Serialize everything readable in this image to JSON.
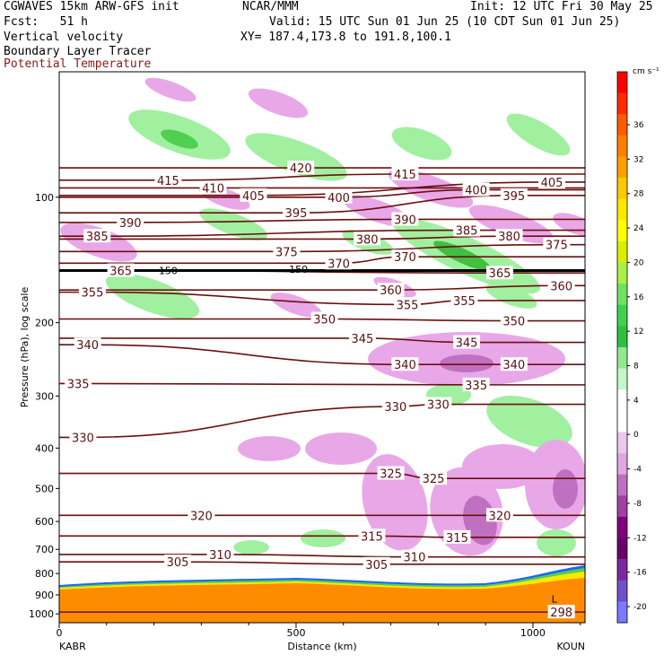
{
  "header": {
    "model": "CGWAVES 15km ARW-GFS init",
    "org": "NCAR/MMM",
    "init": "Init: 12 UTC Fri 30 May 25",
    "fcst": "Fcst:   51 h",
    "valid": "Valid: 15 UTC Sun 01 Jun 25 (10 CDT Sun 01 Jun 25)",
    "xy": "XY= 187.4,173.8 to 191.8,100.1",
    "field1": "Vertical velocity",
    "field2": "Boundary Layer Tracer",
    "field3": "Potential Temperature"
  },
  "colors": {
    "theta": "#6b0f0f",
    "terrain": "#ff8c00",
    "up": "#a0f0a0",
    "down": "#e8a8e8"
  },
  "chart_data": {
    "type": "contour",
    "xlabel": "Distance (km)",
    "ylabel": "Pressure (hPa), log scale",
    "x_ticks": [
      0,
      500,
      1000
    ],
    "x_end_labels": [
      "KABR",
      "KOUN"
    ],
    "xlim": [
      0,
      1110
    ],
    "y_ticks": [
      100,
      200,
      300,
      400,
      500,
      600,
      700,
      800,
      900,
      1000
    ],
    "ylim": [
      1050,
      50
    ],
    "y_scale": "log",
    "colorbar": {
      "unit": "cm s⁻¹",
      "ticks": [
        36,
        32,
        28,
        24,
        20,
        16,
        12,
        8,
        4,
        0,
        -4,
        -8,
        -12,
        -16,
        -20
      ],
      "colors": [
        "#ff0000",
        "#ff2a00",
        "#ff5a00",
        "#ff8000",
        "#ffa000",
        "#ffc800",
        "#ffe800",
        "#ffff00",
        "#d8f000",
        "#a8f048",
        "#70e060",
        "#40d050",
        "#30c040",
        "#90e890",
        "#c8f5c8",
        "#ffffff",
        "#ffffff",
        "#ecc8ec",
        "#e0a8e0",
        "#c070c0",
        "#a040a0",
        "#800080",
        "#6a006a",
        "#7a2aa0",
        "#7050c8",
        "#7a7aff"
      ]
    },
    "theta_labels": [
      {
        "value": "420",
        "x": 510,
        "p": 85
      },
      {
        "value": "415",
        "x": 230,
        "p": 91
      },
      {
        "value": "415",
        "x": 730,
        "p": 88
      },
      {
        "value": "410",
        "x": 325,
        "p": 95
      },
      {
        "value": "405",
        "x": 410,
        "p": 99
      },
      {
        "value": "405",
        "x": 1040,
        "p": 92
      },
      {
        "value": "400",
        "x": 590,
        "p": 100
      },
      {
        "value": "400",
        "x": 880,
        "p": 96
      },
      {
        "value": "395",
        "x": 500,
        "p": 109
      },
      {
        "value": "395",
        "x": 960,
        "p": 99
      },
      {
        "value": "390",
        "x": 150,
        "p": 115
      },
      {
        "value": "390",
        "x": 730,
        "p": 113
      },
      {
        "value": "385",
        "x": 80,
        "p": 124
      },
      {
        "value": "385",
        "x": 860,
        "p": 120
      },
      {
        "value": "380",
        "x": 650,
        "p": 126
      },
      {
        "value": "380",
        "x": 950,
        "p": 124
      },
      {
        "value": "375",
        "x": 480,
        "p": 135
      },
      {
        "value": "375",
        "x": 1050,
        "p": 130
      },
      {
        "value": "370",
        "x": 590,
        "p": 144
      },
      {
        "value": "370",
        "x": 730,
        "p": 139
      },
      {
        "value": "365",
        "x": 130,
        "p": 150
      },
      {
        "value": "365",
        "x": 930,
        "p": 152
      },
      {
        "value": "360",
        "x": 700,
        "p": 167
      },
      {
        "value": "360",
        "x": 1060,
        "p": 163
      },
      {
        "value": "355",
        "x": 70,
        "p": 169
      },
      {
        "value": "355",
        "x": 735,
        "p": 181
      },
      {
        "value": "355",
        "x": 855,
        "p": 177
      },
      {
        "value": "350",
        "x": 560,
        "p": 196
      },
      {
        "value": "350",
        "x": 960,
        "p": 198
      },
      {
        "value": "345",
        "x": 640,
        "p": 218
      },
      {
        "value": "345",
        "x": 860,
        "p": 223
      },
      {
        "value": "340",
        "x": 60,
        "p": 226
      },
      {
        "value": "340",
        "x": 730,
        "p": 252
      },
      {
        "value": "340",
        "x": 960,
        "p": 252
      },
      {
        "value": "335",
        "x": 40,
        "p": 280
      },
      {
        "value": "335",
        "x": 880,
        "p": 282
      },
      {
        "value": "330",
        "x": 50,
        "p": 377
      },
      {
        "value": "330",
        "x": 710,
        "p": 318
      },
      {
        "value": "330",
        "x": 800,
        "p": 314
      },
      {
        "value": "325",
        "x": 700,
        "p": 460
      },
      {
        "value": "325",
        "x": 790,
        "p": 473
      },
      {
        "value": "320",
        "x": 300,
        "p": 580
      },
      {
        "value": "320",
        "x": 930,
        "p": 580
      },
      {
        "value": "315",
        "x": 660,
        "p": 650
      },
      {
        "value": "315",
        "x": 840,
        "p": 655
      },
      {
        "value": "310",
        "x": 340,
        "p": 720
      },
      {
        "value": "310",
        "x": 750,
        "p": 730
      },
      {
        "value": "305",
        "x": 250,
        "p": 750
      },
      {
        "value": "305",
        "x": 670,
        "p": 760
      },
      {
        "value": "298",
        "x": 1060,
        "p": 990
      }
    ],
    "special_labels": [
      {
        "value": "150",
        "x": 230,
        "p": 150
      },
      {
        "value": "150",
        "x": 505,
        "p": 149
      },
      {
        "value": "L",
        "x": 1045,
        "p": 920
      }
    ]
  }
}
